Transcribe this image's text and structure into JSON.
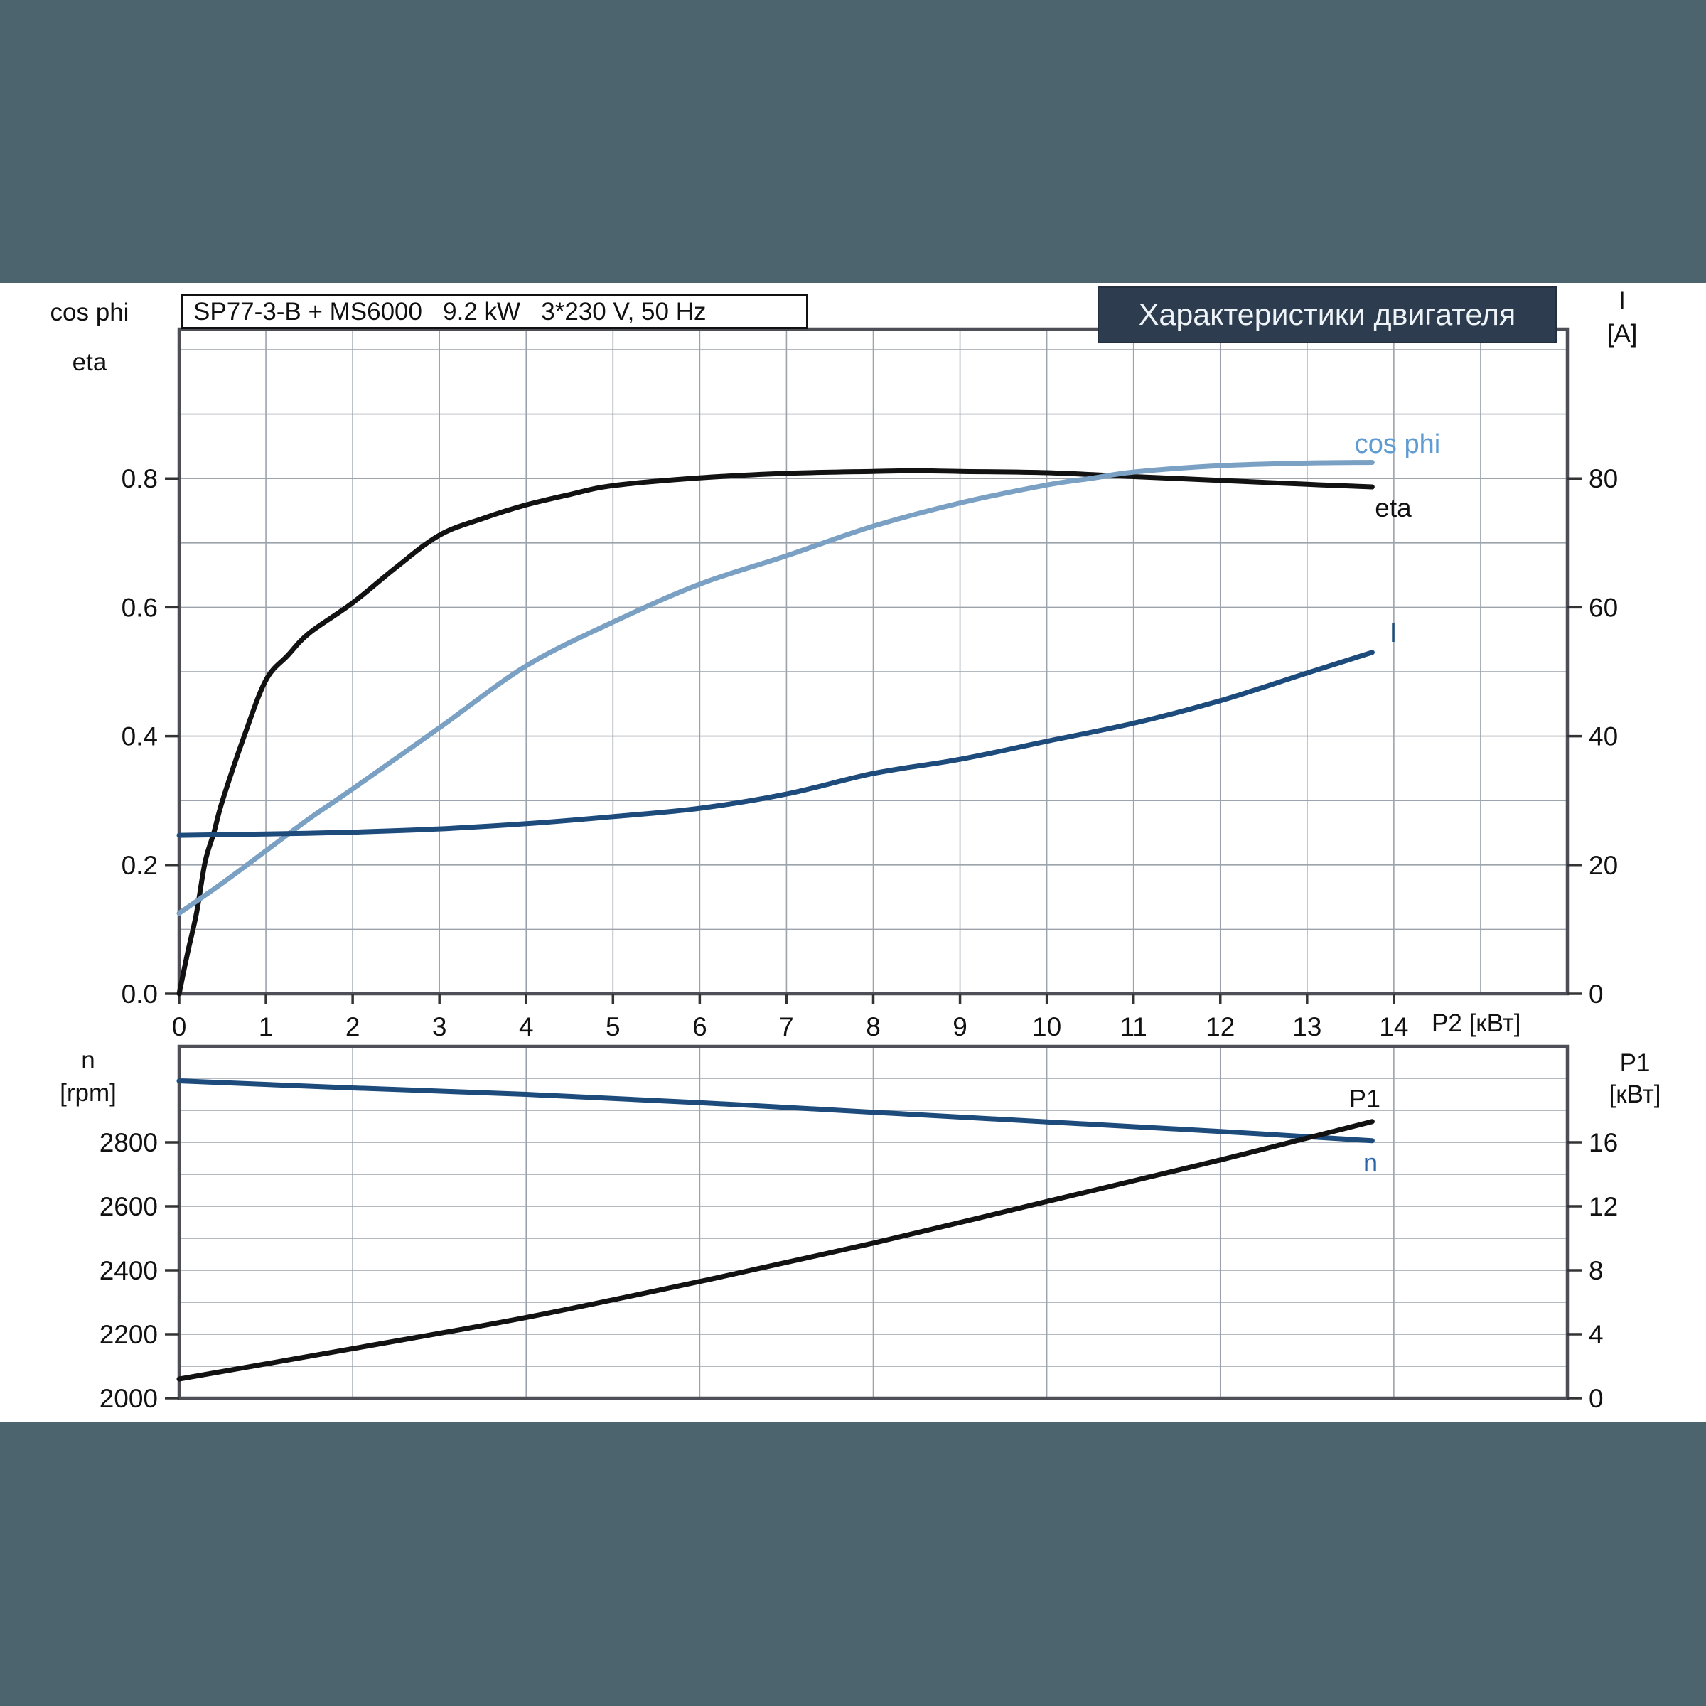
{
  "header": {
    "title_box": "SP77-3-B + MS6000   9.2 kW   3*230 V, 50 Hz",
    "banner": "Характеристики двигателя"
  },
  "colors": {
    "page_background": "#4b646e",
    "band_background": "#ffffff",
    "banner_background": "#2d3c4e",
    "banner_text": "#eef3f8",
    "grid": "#9ca3ac",
    "plot_border": "#4e4e56",
    "tick": "#333333",
    "tick_label": "#111111",
    "eta_curve": "#121212",
    "cosphi_curve": "#7aa1c4",
    "cosphi_label": "#5e9bd3",
    "current_curve": "#1c4b7c",
    "current_label": "#1f4e79",
    "n_curve": "#1c4b7c",
    "n_label": "#2a64a8",
    "p1_curve": "#121212"
  },
  "top_chart_labels": {
    "left_axis_line1": "cos phi",
    "left_axis_line2": "eta",
    "right_axis_line1": "I",
    "right_axis_line2": "[A]",
    "x_axis_title": "P2 [кВт]",
    "curve_label_cosphi": "cos phi",
    "curve_label_eta": "eta",
    "curve_label_current": "I"
  },
  "bottom_chart_labels": {
    "left_axis_line1": "n",
    "left_axis_line2": "[rpm]",
    "right_axis_line1": "P1",
    "right_axis_line2": "[кВт]",
    "curve_label_p1": "P1",
    "curve_label_n": "n"
  },
  "chart_data": [
    {
      "type": "line",
      "title": "SP77-3-B + MS6000 9.2 kW 3*230 V, 50 Hz",
      "xlabel": "P2 [кВт]",
      "ylabel_left": "cos phi / eta",
      "ylabel_right": "I [A]",
      "xlim": [
        0,
        16
      ],
      "x_grid_step": 1,
      "x_tick_values": [
        0,
        1,
        2,
        3,
        4,
        5,
        6,
        7,
        8,
        9,
        10,
        11,
        12,
        13,
        14
      ],
      "x_tick_labels": [
        "0",
        "1",
        "2",
        "3",
        "4",
        "5",
        "6",
        "7",
        "8",
        "9",
        "10",
        "11",
        "12",
        "13",
        "14"
      ],
      "ylim_left": [
        0,
        1.032
      ],
      "y_grid_step_left": 0.1,
      "left_tick_values": [
        0.0,
        0.2,
        0.4,
        0.6,
        0.8
      ],
      "left_tick_labels": [
        "0.0",
        "0.2",
        "0.4",
        "0.6",
        "0.8"
      ],
      "ylim_right": [
        0,
        103.2
      ],
      "right_tick_values": [
        0,
        20,
        40,
        60,
        80
      ],
      "right_tick_labels": [
        "0",
        "20",
        "40",
        "60",
        "80"
      ],
      "legend_position": "inline-labels",
      "grid": true,
      "series": [
        {
          "name": "eta",
          "axis": "left",
          "color_key": "eta_curve",
          "points": [
            [
              0,
              0
            ],
            [
              0.1,
              0.065
            ],
            [
              0.2,
              0.125
            ],
            [
              0.3,
              0.205
            ],
            [
              0.4,
              0.25
            ],
            [
              0.5,
              0.3
            ],
            [
              0.75,
              0.4
            ],
            [
              1,
              0.487
            ],
            [
              1.25,
              0.525
            ],
            [
              1.5,
              0.56
            ],
            [
              2,
              0.607
            ],
            [
              2.5,
              0.662
            ],
            [
              3,
              0.712
            ],
            [
              3.5,
              0.738
            ],
            [
              4,
              0.759
            ],
            [
              4.5,
              0.775
            ],
            [
              5,
              0.789
            ],
            [
              6,
              0.801
            ],
            [
              7,
              0.808
            ],
            [
              8,
              0.811
            ],
            [
              8.5,
              0.812
            ],
            [
              9,
              0.811
            ],
            [
              10,
              0.809
            ],
            [
              11,
              0.803
            ],
            [
              12,
              0.797
            ],
            [
              13,
              0.791
            ],
            [
              13.75,
              0.787
            ]
          ]
        },
        {
          "name": "cos phi",
          "axis": "left",
          "color_key": "cosphi_curve",
          "points": [
            [
              0,
              0.125
            ],
            [
              0.5,
              0.172
            ],
            [
              1,
              0.222
            ],
            [
              1.5,
              0.272
            ],
            [
              2,
              0.318
            ],
            [
              3,
              0.413
            ],
            [
              4,
              0.509
            ],
            [
              5,
              0.577
            ],
            [
              6,
              0.636
            ],
            [
              7,
              0.68
            ],
            [
              8,
              0.726
            ],
            [
              9,
              0.762
            ],
            [
              10,
              0.79
            ],
            [
              10.5,
              0.8
            ],
            [
              11,
              0.81
            ],
            [
              12,
              0.82
            ],
            [
              13,
              0.824
            ],
            [
              13.75,
              0.825
            ]
          ]
        },
        {
          "name": "I",
          "axis": "right",
          "color_key": "current_curve",
          "points": [
            [
              0,
              24.6
            ],
            [
              1,
              24.8
            ],
            [
              2,
              25.1
            ],
            [
              3,
              25.6
            ],
            [
              4,
              26.4
            ],
            [
              5,
              27.5
            ],
            [
              6,
              28.8
            ],
            [
              7,
              31.0
            ],
            [
              8,
              34.2
            ],
            [
              9,
              36.4
            ],
            [
              10,
              39.2
            ],
            [
              11,
              42.0
            ],
            [
              12,
              45.5
            ],
            [
              13,
              49.8
            ],
            [
              13.75,
              53.0
            ]
          ]
        }
      ]
    },
    {
      "type": "line",
      "title": "",
      "xlabel": "P2 [кВт]",
      "ylabel_left": "n [rpm]",
      "ylabel_right": "P1 [кВт]",
      "xlim": [
        0,
        16
      ],
      "x_grid_step": 2,
      "x_tick_values": [],
      "x_tick_labels": [],
      "ylim_left": [
        2000,
        3100
      ],
      "y_grid_step_left": 100,
      "left_tick_values": [
        2000,
        2200,
        2400,
        2600,
        2800
      ],
      "left_tick_labels": [
        "2000",
        "2200",
        "2400",
        "2600",
        "2800"
      ],
      "ylim_right": [
        0,
        22
      ],
      "right_tick_values": [
        0,
        4,
        8,
        12,
        16
      ],
      "right_tick_labels": [
        "0",
        "4",
        "8",
        "12",
        "16"
      ],
      "legend_position": "inline-labels",
      "grid": true,
      "series": [
        {
          "name": "n",
          "axis": "left",
          "color_key": "n_curve",
          "points": [
            [
              0,
              2992
            ],
            [
              2,
              2970
            ],
            [
              4,
              2950
            ],
            [
              6,
              2924
            ],
            [
              8,
              2894
            ],
            [
              10,
              2864
            ],
            [
              12,
              2834
            ],
            [
              13.75,
              2805
            ]
          ]
        },
        {
          "name": "P1",
          "axis": "right",
          "color_key": "p1_curve",
          "points": [
            [
              0,
              1.2
            ],
            [
              2,
              3.1
            ],
            [
              4,
              5.05
            ],
            [
              6,
              7.3
            ],
            [
              8,
              9.7
            ],
            [
              10,
              12.3
            ],
            [
              12,
              14.9
            ],
            [
              13.75,
              17.3
            ]
          ]
        }
      ]
    }
  ]
}
